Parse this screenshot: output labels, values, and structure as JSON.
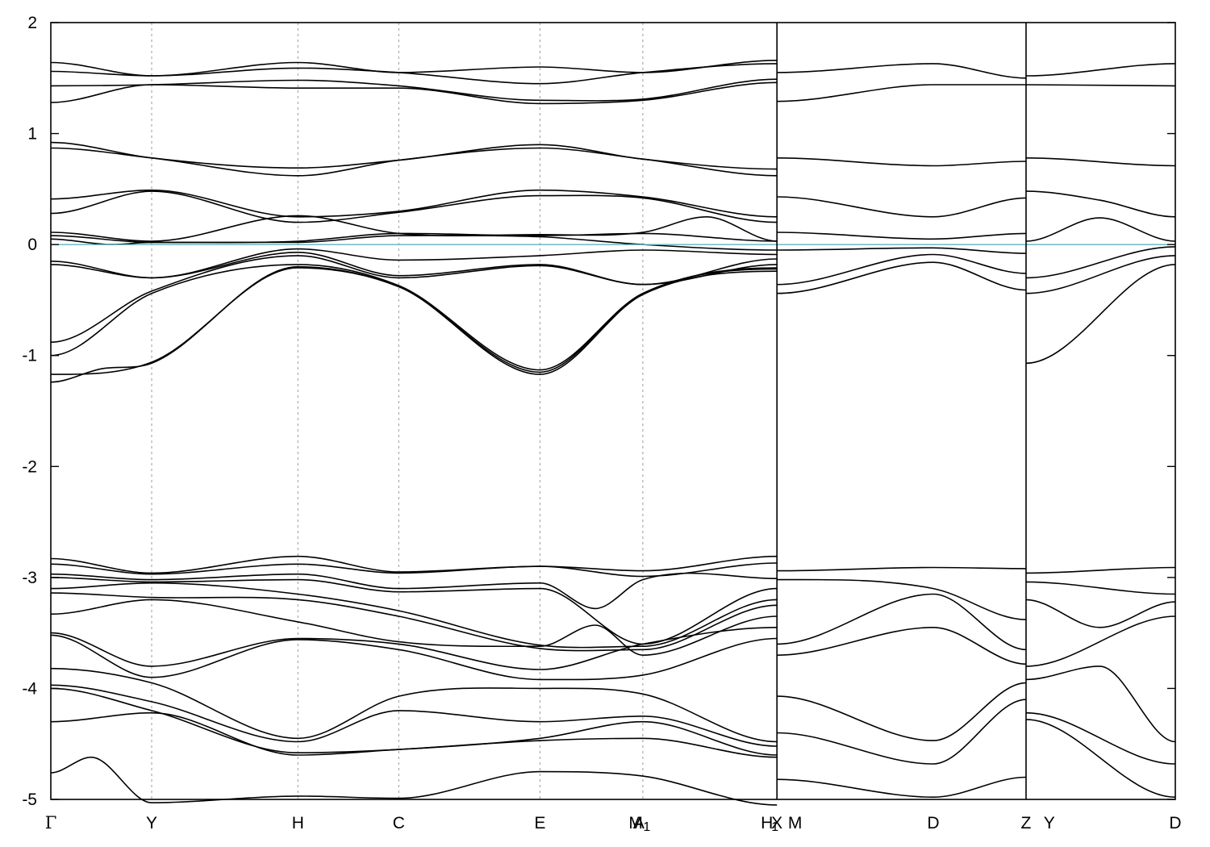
{
  "chart_data": {
    "type": "line",
    "title": "",
    "xlabel": "",
    "ylabel": "",
    "ylim": [
      -5,
      2
    ],
    "yticks": [
      2,
      1,
      0,
      -1,
      -2,
      -3,
      -4,
      -5
    ],
    "ytick_labels": [
      "2",
      "1",
      "0",
      "-1",
      "-2",
      "-3",
      "-4",
      "-5"
    ],
    "xlim": [
      0,
      11.15
    ],
    "kpoints": [
      {
        "label": "Γ",
        "x": 0.0
      },
      {
        "label": "Y",
        "x": 1.0
      },
      {
        "label": "H",
        "x": 2.45
      },
      {
        "label": "C",
        "x": 3.45
      },
      {
        "label": "E",
        "x": 4.85
      },
      {
        "label": "M",
        "x": 5.8
      },
      {
        "label": "A",
        "x": 5.83
      },
      {
        "label": "1",
        "x": 5.91,
        "subscript": true
      },
      {
        "label": "H",
        "x": 7.1
      },
      {
        "label": "1",
        "x": 7.18,
        "subscript": true
      },
      {
        "label": "X",
        "x": 7.2
      },
      {
        "label": "M",
        "x": 7.38
      },
      {
        "label": "D",
        "x": 8.75
      },
      {
        "label": "Z",
        "x": 9.67
      },
      {
        "label": "Y",
        "x": 9.9
      },
      {
        "label": "D",
        "x": 11.15
      }
    ],
    "gridlines_x": [
      1.0,
      2.45,
      3.45,
      4.85,
      5.87
    ],
    "segment_breaks": [
      7.2,
      9.67
    ],
    "fermi_level": 0,
    "grid": false,
    "colors": {
      "bands": "#000000",
      "fermi": "#5fb3c3",
      "grid": "#9a9a9a"
    },
    "series": [
      {
        "segment": 1,
        "x": [
          0,
          1.0,
          2.45,
          3.45,
          4.85,
          5.87,
          7.2
        ],
        "y": [
          1.64,
          1.52,
          1.64,
          1.55,
          1.6,
          1.55,
          1.66
        ]
      },
      {
        "segment": 1,
        "x": [
          0,
          1.0,
          2.45,
          3.45,
          4.85,
          5.87,
          7.2
        ],
        "y": [
          1.56,
          1.52,
          1.59,
          1.55,
          1.45,
          1.55,
          1.63
        ]
      },
      {
        "segment": 1,
        "x": [
          0,
          1.0,
          2.45,
          3.45,
          4.85,
          5.87,
          7.2
        ],
        "y": [
          1.43,
          1.44,
          1.48,
          1.43,
          1.3,
          1.31,
          1.49
        ]
      },
      {
        "segment": 1,
        "x": [
          0,
          1.0,
          2.45,
          3.45,
          4.85,
          5.87,
          7.2
        ],
        "y": [
          1.28,
          1.44,
          1.41,
          1.41,
          1.27,
          1.3,
          1.46
        ]
      },
      {
        "segment": 1,
        "x": [
          0,
          1.0,
          2.45,
          3.45,
          4.85,
          5.87,
          7.2
        ],
        "y": [
          0.92,
          0.78,
          0.69,
          0.76,
          0.9,
          0.77,
          0.68
        ]
      },
      {
        "segment": 1,
        "x": [
          0,
          1.0,
          2.45,
          3.45,
          4.85,
          5.87,
          7.2
        ],
        "y": [
          0.87,
          0.78,
          0.62,
          0.76,
          0.87,
          0.77,
          0.62
        ]
      },
      {
        "segment": 1,
        "x": [
          0,
          1.0,
          2.45,
          3.45,
          4.85,
          5.87,
          7.2
        ],
        "y": [
          0.41,
          0.49,
          0.25,
          0.3,
          0.49,
          0.43,
          0.25
        ]
      },
      {
        "segment": 1,
        "x": [
          0,
          1.0,
          2.45,
          3.45,
          4.85,
          5.87,
          7.2
        ],
        "y": [
          0.28,
          0.48,
          0.2,
          0.29,
          0.44,
          0.42,
          0.2
        ]
      },
      {
        "segment": 1,
        "x": [
          0,
          1.0,
          2.45,
          3.45,
          4.85,
          5.87,
          6.5,
          7.2
        ],
        "y": [
          0.11,
          0.03,
          0.26,
          0.1,
          0.09,
          0.11,
          0.25,
          0.03
        ]
      },
      {
        "segment": 1,
        "x": [
          0,
          1.0,
          2.45,
          3.45,
          4.85,
          5.87,
          7.2
        ],
        "y": [
          0.08,
          0.02,
          0.03,
          0.1,
          0.08,
          0.1,
          0.03
        ]
      },
      {
        "segment": 1,
        "x": [
          0,
          0.6,
          1.0,
          2.45,
          3.45,
          4.85,
          5.87,
          7.2
        ],
        "y": [
          0.05,
          0.0,
          0.02,
          0.02,
          0.08,
          0.07,
          0.0,
          -0.05
        ]
      },
      {
        "segment": 1,
        "x": [
          0,
          1.0,
          2.45,
          3.45,
          4.85,
          5.87,
          7.2
        ],
        "y": [
          -0.15,
          -0.3,
          -0.04,
          -0.14,
          -0.1,
          -0.05,
          -0.09
        ]
      },
      {
        "segment": 1,
        "x": [
          0,
          1.0,
          2.45,
          3.45,
          4.85,
          5.87,
          7.2
        ],
        "y": [
          -0.18,
          -0.3,
          -0.07,
          -0.28,
          -0.18,
          -0.36,
          -0.13
        ]
      },
      {
        "segment": 1,
        "x": [
          0,
          1.0,
          2.45,
          3.45,
          4.85,
          5.87,
          7.2
        ],
        "y": [
          -0.88,
          -0.42,
          -0.1,
          -0.3,
          -0.19,
          -0.36,
          -0.18
        ]
      },
      {
        "segment": 1,
        "x": [
          0,
          1.0,
          2.45,
          3.45,
          4.85,
          5.87,
          7.2
        ],
        "y": [
          -1.0,
          -0.44,
          -0.18,
          -0.37,
          -1.13,
          -0.44,
          -0.21
        ]
      },
      {
        "segment": 1,
        "x": [
          0,
          1.0,
          2.45,
          3.45,
          4.85,
          5.87,
          7.2
        ],
        "y": [
          -1.17,
          -1.06,
          -0.21,
          -0.38,
          -1.17,
          -0.45,
          -0.24
        ]
      },
      {
        "segment": 1,
        "x": [
          0,
          0.5,
          1.0,
          2.45,
          3.45,
          4.85,
          5.87,
          7.2
        ],
        "y": [
          -1.24,
          -1.12,
          -1.07,
          -0.2,
          -0.38,
          -1.15,
          -0.44,
          -0.22
        ]
      },
      {
        "segment": 1,
        "x": [
          0,
          1.0,
          2.45,
          3.45,
          4.85,
          5.87,
          7.2
        ],
        "y": [
          -2.83,
          -2.96,
          -2.81,
          -2.95,
          -2.9,
          -2.94,
          -2.81
        ]
      },
      {
        "segment": 1,
        "x": [
          0,
          1.0,
          2.45,
          3.45,
          4.85,
          5.87,
          7.2
        ],
        "y": [
          -2.88,
          -2.97,
          -2.88,
          -2.96,
          -2.9,
          -2.99,
          -2.87
        ]
      },
      {
        "segment": 1,
        "x": [
          0,
          1.0,
          2.45,
          3.45,
          4.85,
          5.4,
          5.87,
          7.2
        ],
        "y": [
          -2.97,
          -3.02,
          -2.97,
          -3.1,
          -3.05,
          -3.28,
          -3.02,
          -3.01
        ]
      },
      {
        "segment": 1,
        "x": [
          0,
          1.0,
          2.45,
          3.45,
          4.85,
          5.87,
          7.2
        ],
        "y": [
          -3.0,
          -3.04,
          -3.02,
          -3.13,
          -3.1,
          -3.6,
          -3.1
        ]
      },
      {
        "segment": 1,
        "x": [
          0,
          1.0,
          2.45,
          3.45,
          4.85,
          5.87,
          7.2
        ],
        "y": [
          -3.1,
          -3.05,
          -3.15,
          -3.3,
          -3.61,
          -3.62,
          -3.2
        ]
      },
      {
        "segment": 1,
        "x": [
          0,
          1.0,
          2.45,
          3.45,
          4.85,
          5.87,
          7.2
        ],
        "y": [
          -3.14,
          -3.18,
          -3.2,
          -3.35,
          -3.64,
          -3.65,
          -3.25
        ]
      },
      {
        "segment": 1,
        "x": [
          0,
          1.0,
          2.45,
          3.45,
          4.85,
          5.4,
          5.87,
          7.2
        ],
        "y": [
          -3.33,
          -3.2,
          -3.4,
          -3.58,
          -3.62,
          -3.43,
          -3.7,
          -3.35
        ]
      },
      {
        "segment": 1,
        "x": [
          0,
          1.0,
          2.45,
          3.45,
          4.85,
          5.87,
          7.2
        ],
        "y": [
          -3.5,
          -3.8,
          -3.55,
          -3.6,
          -3.83,
          -3.6,
          -3.45
        ]
      },
      {
        "segment": 1,
        "x": [
          0,
          1.0,
          2.45,
          3.45,
          4.85,
          5.87,
          7.2
        ],
        "y": [
          -3.52,
          -3.9,
          -3.56,
          -3.65,
          -3.92,
          -3.88,
          -3.55
        ]
      },
      {
        "segment": 1,
        "x": [
          0,
          1.0,
          2.45,
          3.45,
          4.85,
          5.87,
          7.2
        ],
        "y": [
          -3.82,
          -3.95,
          -4.45,
          -4.07,
          -4.0,
          -4.05,
          -4.48
        ]
      },
      {
        "segment": 1,
        "x": [
          0,
          1.0,
          2.45,
          3.45,
          4.85,
          5.87,
          7.2
        ],
        "y": [
          -3.97,
          -4.12,
          -4.48,
          -4.2,
          -4.3,
          -4.25,
          -4.52
        ]
      },
      {
        "segment": 1,
        "x": [
          0,
          1.0,
          2.45,
          3.45,
          4.85,
          5.87,
          7.2
        ],
        "y": [
          -4.0,
          -4.2,
          -4.58,
          -4.55,
          -4.45,
          -4.3,
          -4.6
        ]
      },
      {
        "segment": 1,
        "x": [
          0,
          1.0,
          2.45,
          3.45,
          4.85,
          5.87,
          7.2
        ],
        "y": [
          -4.3,
          -4.22,
          -4.6,
          -4.55,
          -4.47,
          -4.45,
          -4.62
        ]
      },
      {
        "segment": 1,
        "x": [
          0,
          0.4,
          1.0,
          2.45,
          3.45,
          4.85,
          5.87,
          7.2
        ],
        "y": [
          -4.76,
          -4.62,
          -5.03,
          -4.97,
          -4.99,
          -4.75,
          -4.79,
          -5.05
        ]
      },
      {
        "segment": 2,
        "x": [
          7.2,
          8.75,
          9.67
        ],
        "y": [
          1.55,
          1.63,
          1.5
        ]
      },
      {
        "segment": 2,
        "x": [
          7.2,
          8.75,
          9.67
        ],
        "y": [
          1.29,
          1.44,
          1.44
        ]
      },
      {
        "segment": 2,
        "x": [
          7.2,
          8.75,
          9.67
        ],
        "y": [
          0.78,
          0.71,
          0.75
        ]
      },
      {
        "segment": 2,
        "x": [
          7.2,
          8.75,
          9.67
        ],
        "y": [
          0.43,
          0.25,
          0.42
        ]
      },
      {
        "segment": 2,
        "x": [
          7.2,
          8.75,
          9.67
        ],
        "y": [
          0.11,
          0.05,
          0.1
        ]
      },
      {
        "segment": 2,
        "x": [
          7.2,
          8.75,
          9.67
        ],
        "y": [
          -0.05,
          -0.03,
          -0.08
        ]
      },
      {
        "segment": 2,
        "x": [
          7.2,
          8.75,
          9.67
        ],
        "y": [
          -0.36,
          -0.09,
          -0.26
        ]
      },
      {
        "segment": 2,
        "x": [
          7.2,
          8.75,
          9.67
        ],
        "y": [
          -0.44,
          -0.16,
          -0.41
        ]
      },
      {
        "segment": 2,
        "x": [
          7.2,
          8.75,
          9.67
        ],
        "y": [
          -2.94,
          -2.91,
          -2.92
        ]
      },
      {
        "segment": 2,
        "x": [
          7.2,
          8.75,
          9.67
        ],
        "y": [
          -3.02,
          -3.1,
          -3.38
        ]
      },
      {
        "segment": 2,
        "x": [
          7.2,
          8.75,
          9.67
        ],
        "y": [
          -3.6,
          -3.15,
          -3.65
        ]
      },
      {
        "segment": 2,
        "x": [
          7.2,
          8.75,
          9.67
        ],
        "y": [
          -3.7,
          -3.45,
          -3.78
        ]
      },
      {
        "segment": 2,
        "x": [
          7.2,
          8.75,
          9.67
        ],
        "y": [
          -4.07,
          -4.47,
          -3.95
        ]
      },
      {
        "segment": 2,
        "x": [
          7.2,
          8.75,
          9.67
        ],
        "y": [
          -4.4,
          -4.68,
          -4.1
        ]
      },
      {
        "segment": 2,
        "x": [
          7.2,
          8.75,
          9.67
        ],
        "y": [
          -4.82,
          -4.98,
          -4.8
        ]
      },
      {
        "segment": 3,
        "x": [
          9.67,
          11.15
        ],
        "y": [
          1.52,
          1.63
        ]
      },
      {
        "segment": 3,
        "x": [
          9.67,
          11.15
        ],
        "y": [
          1.44,
          1.43
        ]
      },
      {
        "segment": 3,
        "x": [
          9.67,
          11.15
        ],
        "y": [
          0.78,
          0.71
        ]
      },
      {
        "segment": 3,
        "x": [
          9.67,
          10.4,
          11.15
        ],
        "y": [
          0.48,
          0.4,
          0.25
        ]
      },
      {
        "segment": 3,
        "x": [
          9.67,
          10.4,
          11.15
        ],
        "y": [
          0.03,
          0.24,
          0.03
        ]
      },
      {
        "segment": 3,
        "x": [
          9.67,
          11.15
        ],
        "y": [
          -0.3,
          -0.02
        ]
      },
      {
        "segment": 3,
        "x": [
          9.67,
          11.15
        ],
        "y": [
          -0.44,
          -0.1
        ]
      },
      {
        "segment": 3,
        "x": [
          9.67,
          11.15
        ],
        "y": [
          -1.07,
          -0.18
        ]
      },
      {
        "segment": 3,
        "x": [
          9.67,
          11.15
        ],
        "y": [
          -2.96,
          -2.91
        ]
      },
      {
        "segment": 3,
        "x": [
          9.67,
          11.15
        ],
        "y": [
          -3.04,
          -3.15
        ]
      },
      {
        "segment": 3,
        "x": [
          9.67,
          10.4,
          11.15
        ],
        "y": [
          -3.2,
          -3.45,
          -3.22
        ]
      },
      {
        "segment": 3,
        "x": [
          9.67,
          11.15
        ],
        "y": [
          -3.8,
          -3.35
        ]
      },
      {
        "segment": 3,
        "x": [
          9.67,
          10.4,
          11.15
        ],
        "y": [
          -3.92,
          -3.8,
          -4.48
        ]
      },
      {
        "segment": 3,
        "x": [
          9.67,
          11.15
        ],
        "y": [
          -4.22,
          -4.68
        ]
      },
      {
        "segment": 3,
        "x": [
          9.67,
          11.15
        ],
        "y": [
          -4.28,
          -4.98
        ]
      }
    ]
  }
}
